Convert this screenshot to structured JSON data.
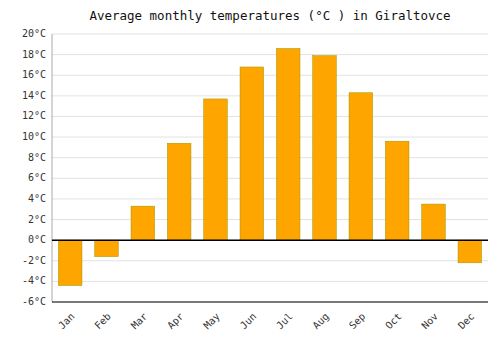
{
  "chart_data": {
    "type": "bar",
    "title": "Average monthly temperatures (°C ) in Giraltovce",
    "categories": [
      "Jan",
      "Feb",
      "Mar",
      "Apr",
      "May",
      "Jun",
      "Jul",
      "Aug",
      "Sep",
      "Oct",
      "Nov",
      "Dec"
    ],
    "values": [
      -4.4,
      -1.6,
      3.3,
      9.4,
      13.7,
      16.8,
      18.6,
      17.9,
      14.3,
      9.6,
      3.5,
      -2.2
    ],
    "color": "#FFA500",
    "ylim": [
      -6,
      20
    ],
    "yticks": [
      {
        "value": -6,
        "label": "-6°C"
      },
      {
        "value": -4,
        "label": "-4°C"
      },
      {
        "value": -2,
        "label": "-2°C"
      },
      {
        "value": 0,
        "label": "0°C"
      },
      {
        "value": 2,
        "label": "2°C"
      },
      {
        "value": 4,
        "label": "4°C"
      },
      {
        "value": 6,
        "label": "6°C"
      },
      {
        "value": 8,
        "label": "8°C"
      },
      {
        "value": 10,
        "label": "10°C"
      },
      {
        "value": 12,
        "label": "12°C"
      },
      {
        "value": 14,
        "label": "14°C"
      },
      {
        "value": 16,
        "label": "16°C"
      },
      {
        "value": 18,
        "label": "18°C"
      },
      {
        "value": 20,
        "label": "20°C"
      }
    ],
    "grid": true
  }
}
